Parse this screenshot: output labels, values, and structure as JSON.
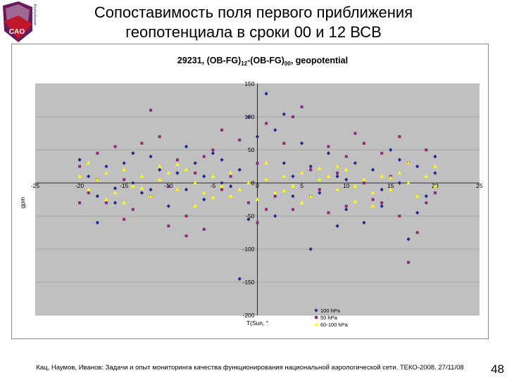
{
  "logo": {
    "text": "CAO",
    "side_text": "Roshydromet"
  },
  "slide": {
    "title_line1": "Сопоставимость поля первого приближения",
    "title_line2": "геопотенциала в сроки 00 и 12 ВСВ",
    "footer": "Кац, Наумов, Иванов: Задачи и опыт мониторинга качества функционирования национальной аэрологической сети. ТЕКО-2008. 27/11/08",
    "page_number": "48"
  },
  "colors": {
    "plot_bg": "#c0c0c0",
    "series_100": "#1f2a8c",
    "series_50": "#8b2a78",
    "series_60_100": "#ffff00"
  },
  "chart_data": {
    "type": "scatter",
    "title_main": "29231, (OB-FG)",
    "title_sub1": "12",
    "title_mid": "-(OB-FG)",
    "title_sub2": "00",
    "title_end": ", geopotential",
    "xlabel": "T(Sun, °",
    "ylabel": "gpm",
    "xlim": [
      -25,
      25
    ],
    "ylim": [
      -200,
      150
    ],
    "x_ticks": [
      "-25",
      "-20",
      "-15",
      "-10",
      "-5",
      "0",
      "5",
      "10",
      "15",
      "20",
      "25"
    ],
    "y_ticks": [
      "150",
      "100",
      "50",
      "0",
      "-50",
      "-100",
      "-150",
      "-200"
    ],
    "legend": [
      "100 hPa",
      "50 hPa",
      "60-100 hPa"
    ],
    "legend_position": "bottom-right",
    "series": [
      {
        "name": "100 hPa",
        "marker": "diamond",
        "points": [
          [
            -20,
            35
          ],
          [
            -19,
            10
          ],
          [
            -18,
            -20
          ],
          [
            -17,
            25
          ],
          [
            -16,
            -30
          ],
          [
            -15,
            30
          ],
          [
            -14,
            0
          ],
          [
            -13,
            -15
          ],
          [
            -12,
            40
          ],
          [
            -11,
            20
          ],
          [
            -10,
            -35
          ],
          [
            -9,
            15
          ],
          [
            -8,
            -10
          ],
          [
            -7,
            30
          ],
          [
            -6,
            -25
          ],
          [
            -5,
            45
          ],
          [
            -4,
            0
          ],
          [
            -3,
            -5
          ],
          [
            -2,
            20
          ],
          [
            -1,
            100
          ],
          [
            0,
            70
          ],
          [
            1,
            135
          ],
          [
            2,
            80
          ],
          [
            3,
            30
          ],
          [
            4,
            -20
          ],
          [
            5,
            60
          ],
          [
            6,
            25
          ],
          [
            7,
            -15
          ],
          [
            8,
            45
          ],
          [
            9,
            10
          ],
          [
            10,
            -40
          ],
          [
            11,
            30
          ],
          [
            12,
            -60
          ],
          [
            13,
            20
          ],
          [
            14,
            -10
          ],
          [
            15,
            50
          ],
          [
            16,
            0
          ],
          [
            17,
            -85
          ],
          [
            18,
            25
          ],
          [
            19,
            -20
          ],
          [
            20,
            40
          ],
          [
            -18,
            -60
          ],
          [
            -14,
            45
          ],
          [
            -8,
            55
          ],
          [
            -4,
            35
          ],
          [
            -1,
            -55
          ],
          [
            2,
            -50
          ],
          [
            6,
            -100
          ],
          [
            9,
            -65
          ],
          [
            14,
            -35
          ],
          [
            18,
            -45
          ],
          [
            -12,
            -10
          ],
          [
            4,
            10
          ],
          [
            10,
            5
          ],
          [
            16,
            35
          ],
          [
            -6,
            10
          ],
          [
            -16,
            -8
          ],
          [
            3,
            104
          ],
          [
            -2,
            -145
          ],
          [
            20,
            15
          ]
        ]
      },
      {
        "name": "50 hPa",
        "marker": "square",
        "points": [
          [
            -20,
            25
          ],
          [
            -19,
            -15
          ],
          [
            -18,
            45
          ],
          [
            -17,
            -30
          ],
          [
            -16,
            55
          ],
          [
            -15,
            5
          ],
          [
            -14,
            -40
          ],
          [
            -13,
            60
          ],
          [
            -12,
            -20
          ],
          [
            -11,
            70
          ],
          [
            -10,
            -5
          ],
          [
            -9,
            35
          ],
          [
            -8,
            -50
          ],
          [
            -7,
            15
          ],
          [
            -6,
            -70
          ],
          [
            -5,
            50
          ],
          [
            -4,
            -10
          ],
          [
            -3,
            10
          ],
          [
            -2,
            65
          ],
          [
            -1,
            -30
          ],
          [
            0,
            30
          ],
          [
            1,
            90
          ],
          [
            2,
            -20
          ],
          [
            3,
            60
          ],
          [
            4,
            -40
          ],
          [
            5,
            115
          ],
          [
            6,
            20
          ],
          [
            7,
            -10
          ],
          [
            8,
            55
          ],
          [
            9,
            15
          ],
          [
            10,
            -35
          ],
          [
            11,
            75
          ],
          [
            12,
            0
          ],
          [
            13,
            -25
          ],
          [
            14,
            45
          ],
          [
            15,
            10
          ],
          [
            16,
            -50
          ],
          [
            17,
            30
          ],
          [
            18,
            -75
          ],
          [
            19,
            50
          ],
          [
            20,
            -15
          ],
          [
            -8,
            -80
          ],
          [
            -12,
            110
          ],
          [
            0,
            -60
          ],
          [
            8,
            -45
          ],
          [
            17,
            -120
          ],
          [
            -20,
            -30
          ],
          [
            -4,
            80
          ],
          [
            12,
            60
          ],
          [
            16,
            70
          ],
          [
            -15,
            -55
          ],
          [
            4,
            100
          ],
          [
            10,
            40
          ],
          [
            -10,
            -65
          ],
          [
            1,
            -40
          ],
          [
            14,
            -30
          ],
          [
            19,
            -30
          ],
          [
            -18,
            5
          ],
          [
            6,
            -20
          ],
          [
            -6,
            40
          ]
        ]
      },
      {
        "name": "60-100 hPa",
        "marker": "triangle",
        "points": [
          [
            -20,
            10
          ],
          [
            -19,
            -10
          ],
          [
            -18,
            5
          ],
          [
            -17,
            15
          ],
          [
            -16,
            -15
          ],
          [
            -15,
            20
          ],
          [
            -14,
            -5
          ],
          [
            -13,
            10
          ],
          [
            -12,
            -20
          ],
          [
            -11,
            5
          ],
          [
            -10,
            15
          ],
          [
            -9,
            -10
          ],
          [
            -8,
            20
          ],
          [
            -7,
            0
          ],
          [
            -6,
            -15
          ],
          [
            -5,
            10
          ],
          [
            -4,
            -5
          ],
          [
            -3,
            15
          ],
          [
            -2,
            -10
          ],
          [
            -1,
            0
          ],
          [
            0,
            -25
          ],
          [
            1,
            5
          ],
          [
            2,
            -15
          ],
          [
            3,
            10
          ],
          [
            4,
            -5
          ],
          [
            5,
            15
          ],
          [
            6,
            -20
          ],
          [
            7,
            5
          ],
          [
            8,
            10
          ],
          [
            9,
            -10
          ],
          [
            10,
            20
          ],
          [
            11,
            -5
          ],
          [
            12,
            5
          ],
          [
            13,
            -15
          ],
          [
            14,
            10
          ],
          [
            15,
            -10
          ],
          [
            16,
            15
          ],
          [
            17,
            0
          ],
          [
            18,
            -20
          ],
          [
            19,
            10
          ],
          [
            20,
            25
          ],
          [
            -19,
            30
          ],
          [
            -15,
            -30
          ],
          [
            -11,
            25
          ],
          [
            -7,
            -35
          ],
          [
            -3,
            -20
          ],
          [
            1,
            30
          ],
          [
            5,
            -30
          ],
          [
            9,
            25
          ],
          [
            13,
            -35
          ],
          [
            17,
            30
          ],
          [
            20,
            -5
          ],
          [
            -17,
            -25
          ],
          [
            -13,
            -8
          ],
          [
            -9,
            28
          ],
          [
            -5,
            -22
          ],
          [
            3,
            -12
          ],
          [
            7,
            22
          ],
          [
            11,
            -28
          ],
          [
            15,
            8
          ]
        ]
      }
    ]
  }
}
